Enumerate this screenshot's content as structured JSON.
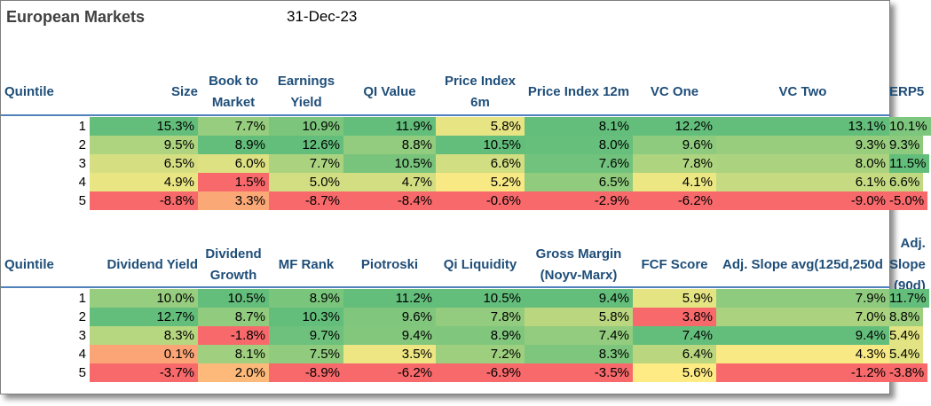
{
  "title": "European Markets",
  "date": "31-Dec-23",
  "chart_data": [
    {
      "type": "table",
      "row_header": "Quintile",
      "columns": [
        "Size",
        "Book to Market",
        "Earnings Yield",
        "QI Value",
        "Price Index 6m",
        "Price Index 12m",
        "VC One",
        "VC Two",
        "ERP5"
      ],
      "rows": [
        "1",
        "2",
        "3",
        "4",
        "5"
      ],
      "values": [
        [
          "15.3%",
          "7.7%",
          "10.9%",
          "11.9%",
          "5.8%",
          "8.1%",
          "12.2%",
          "13.1%",
          "10.1%"
        ],
        [
          "9.5%",
          "8.9%",
          "12.6%",
          "8.8%",
          "10.5%",
          "8.0%",
          "9.6%",
          "9.3%",
          "9.3%"
        ],
        [
          "6.5%",
          "6.0%",
          "7.7%",
          "10.5%",
          "6.6%",
          "7.6%",
          "7.8%",
          "8.0%",
          "11.5%"
        ],
        [
          "4.9%",
          "1.5%",
          "5.0%",
          "4.7%",
          "5.2%",
          "6.5%",
          "4.1%",
          "6.1%",
          "6.6%"
        ],
        [
          "-8.8%",
          "3.3%",
          "-8.7%",
          "-8.4%",
          "-0.6%",
          "-2.9%",
          "-6.2%",
          "-9.0%",
          "-5.0%"
        ]
      ]
    },
    {
      "type": "table",
      "row_header": "Quintile",
      "columns": [
        "Dividend Yield",
        "Dividend Growth",
        "MF Rank",
        "Piotroski",
        "Qi Liquidity",
        "Gross Margin (Noyv-Marx)",
        "FCF Score",
        "Adj. Slope avg(125d,250d",
        "Adj. Slope (90d)"
      ],
      "rows": [
        "1",
        "2",
        "3",
        "4",
        "5"
      ],
      "values": [
        [
          "10.0%",
          "10.5%",
          "8.9%",
          "11.2%",
          "10.5%",
          "9.4%",
          "5.9%",
          "7.9%",
          "11.7%"
        ],
        [
          "12.7%",
          "8.7%",
          "10.3%",
          "9.6%",
          "7.8%",
          "5.8%",
          "3.8%",
          "7.0%",
          "8.8%"
        ],
        [
          "8.3%",
          "-1.8%",
          "9.7%",
          "9.4%",
          "8.9%",
          "7.4%",
          "7.4%",
          "9.4%",
          "5.4%"
        ],
        [
          "0.1%",
          "8.1%",
          "7.5%",
          "3.5%",
          "7.2%",
          "8.3%",
          "6.4%",
          "4.3%",
          "5.4%"
        ],
        [
          "-3.7%",
          "2.0%",
          "-8.9%",
          "-6.2%",
          "-6.9%",
          "-3.5%",
          "5.6%",
          "-1.2%",
          "-3.8%"
        ]
      ]
    }
  ],
  "colors": {
    "header_text": "#1f4e79",
    "separator": "#4f81bd",
    "scale_low": "#f8696b",
    "scale_mid": "#ffeb84",
    "scale_high": "#63be7b"
  }
}
